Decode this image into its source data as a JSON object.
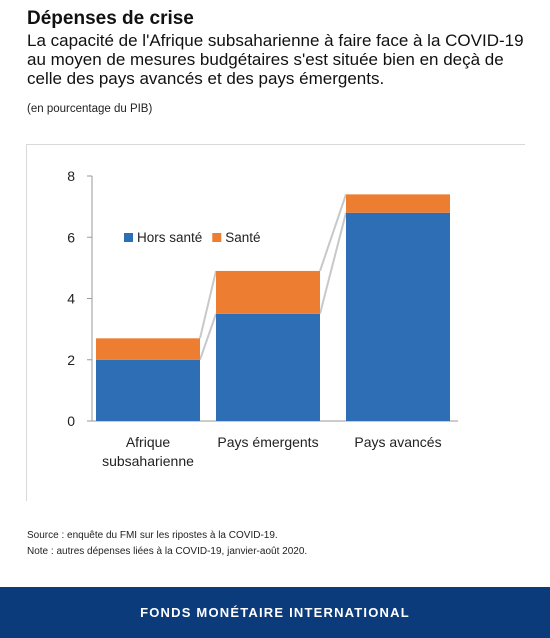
{
  "header": {
    "title": "Dépenses de crise",
    "subtitle": "La capacité de l'Afrique subsaharienne à faire face à la COVID-19 au moyen de mesures budgétaires s'est située bien en deçà de celle des pays avancés et des pays émergents.",
    "unit": "(en pourcentage du PIB)"
  },
  "chart_data": {
    "type": "bar",
    "stacked": true,
    "categories": [
      "Afrique subsaharienne",
      "Pays émergents",
      "Pays avancés"
    ],
    "category_lines": [
      [
        "Afrique",
        "subsaharienne"
      ],
      [
        "Pays émergents"
      ],
      [
        "Pays avancés"
      ]
    ],
    "series": [
      {
        "name": "Hors santé",
        "values": [
          2.0,
          3.5,
          6.8
        ],
        "color": "#2e6eb5"
      },
      {
        "name": "Santé",
        "values": [
          0.7,
          1.4,
          0.6
        ],
        "color": "#ed7d31"
      }
    ],
    "ylim": [
      0,
      8
    ],
    "yticks": [
      0,
      2,
      4,
      6,
      8
    ],
    "legend_position": "top-left",
    "grid": false,
    "connector_color": "#c8c8c8"
  },
  "notes": {
    "source": "Source : enquête du FMI sur les ripostes à la COVID-19.",
    "note": "Note : autres dépenses liées à la COVID-19, janvier-août 2020."
  },
  "footer": {
    "label": "FONDS MONÉTAIRE INTERNATIONAL",
    "background": "#0c3b7c"
  }
}
